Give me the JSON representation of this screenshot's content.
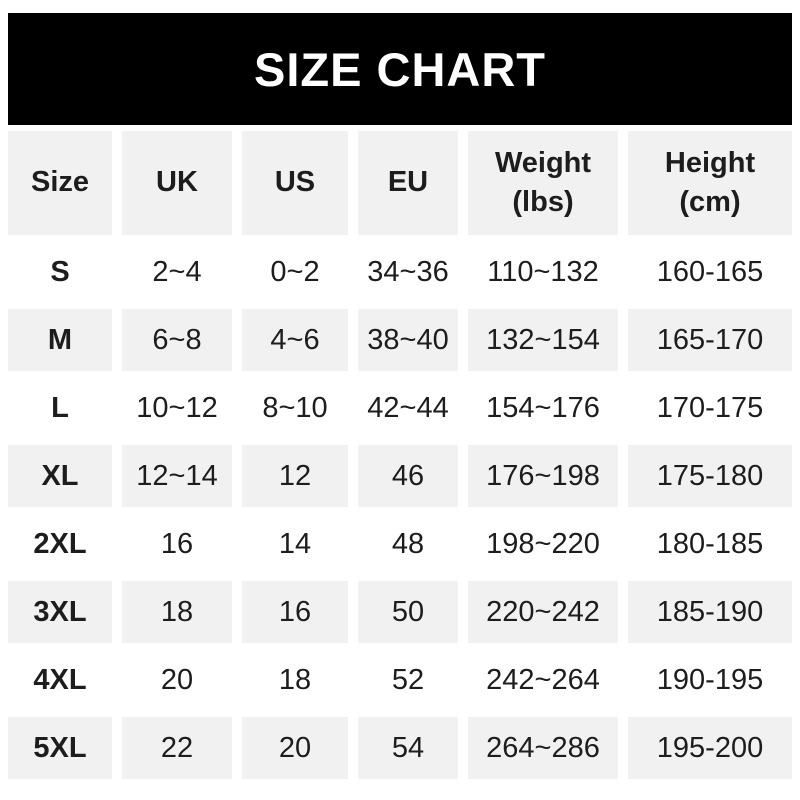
{
  "banner": {
    "title": "SIZE CHART"
  },
  "chart_data": {
    "type": "table",
    "title": "SIZE CHART",
    "column_keys": [
      "size",
      "uk",
      "us",
      "eu",
      "weight-lbs",
      "height-cm"
    ],
    "columns": [
      "Size",
      "UK",
      "US",
      "EU",
      "Weight\n(lbs)",
      "Height\n(cm)"
    ],
    "rows": [
      [
        "S",
        "2~4",
        "0~2",
        "34~36",
        "110~132",
        "160-165"
      ],
      [
        "M",
        "6~8",
        "4~6",
        "38~40",
        "132~154",
        "165-170"
      ],
      [
        "L",
        "10~12",
        "8~10",
        "42~44",
        "154~176",
        "170-175"
      ],
      [
        "XL",
        "12~14",
        "12",
        "46",
        "176~198",
        "175-180"
      ],
      [
        "2XL",
        "16",
        "14",
        "48",
        "198~220",
        "180-185"
      ],
      [
        "3XL",
        "18",
        "16",
        "50",
        "220~242",
        "185-190"
      ],
      [
        "4XL",
        "20",
        "18",
        "52",
        "242~264",
        "190-195"
      ],
      [
        "5XL",
        "22",
        "20",
        "54",
        "264~286",
        "195-200"
      ]
    ],
    "layout_hints": {
      "shaded_rows": "header and alternate data rows (M, XL, 3XL, 5XL)",
      "grid": "white gutters between cells, no borders"
    }
  },
  "colors": {
    "page_bg": "#ffffff",
    "banner_bg": "#000000",
    "title_text": "#ffffff",
    "row_shade": "#f1f1f1",
    "text": "#1d1d1d"
  }
}
